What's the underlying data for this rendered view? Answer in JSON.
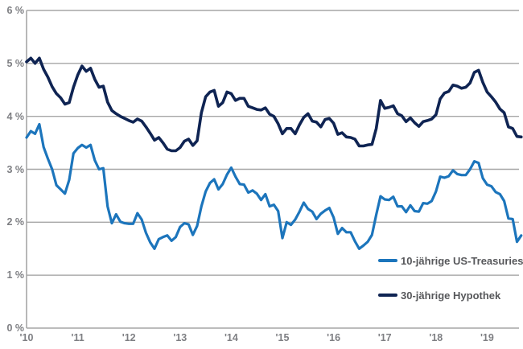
{
  "colors": {
    "background": "#ffffff",
    "grid": "#a6a6a6",
    "axis": "#a6a6a6",
    "tick_text": "#7e7f83",
    "legend_text": "#57585b",
    "series_treasury": "#1c75bc",
    "series_mortgage": "#0f2453"
  },
  "chart_data": {
    "type": "line",
    "title": "",
    "xlabel": "",
    "ylabel": "",
    "x_range": [
      "2010-01",
      "2019-09"
    ],
    "sampling": "monthly",
    "ylim": [
      0,
      6
    ],
    "y_grid_step": 1,
    "grid": "horizontal-only",
    "legend_position": "inside-bottom-right",
    "y_tick_labels": [
      "0 %",
      "1 %",
      "2 %",
      "3 %",
      "4 %",
      "5 %",
      "6 %"
    ],
    "x_tick_labels": [
      "'10",
      "'11",
      "'12",
      "'13",
      "'14",
      "'15",
      "'16",
      "'17",
      "'18",
      "'19"
    ],
    "series": [
      {
        "name": "10-jährige US-Treasuries",
        "color": "#1c75bc",
        "values": [
          3.6,
          3.72,
          3.67,
          3.85,
          3.42,
          3.2,
          3.0,
          2.7,
          2.62,
          2.54,
          2.8,
          3.3,
          3.4,
          3.46,
          3.41,
          3.46,
          3.17,
          3.0,
          3.02,
          2.3,
          1.98,
          2.15,
          2.01,
          1.98,
          1.97,
          1.97,
          2.17,
          2.05,
          1.8,
          1.62,
          1.5,
          1.68,
          1.72,
          1.75,
          1.65,
          1.72,
          1.91,
          1.98,
          1.96,
          1.76,
          1.93,
          2.3,
          2.58,
          2.74,
          2.81,
          2.62,
          2.72,
          2.9,
          3.03,
          2.86,
          2.72,
          2.71,
          2.56,
          2.6,
          2.54,
          2.42,
          2.53,
          2.3,
          2.33,
          2.21,
          1.7,
          2.0,
          1.95,
          2.05,
          2.2,
          2.37,
          2.25,
          2.2,
          2.06,
          2.16,
          2.22,
          2.27,
          2.09,
          1.78,
          1.89,
          1.81,
          1.81,
          1.64,
          1.5,
          1.56,
          1.63,
          1.76,
          2.14,
          2.49,
          2.43,
          2.42,
          2.48,
          2.3,
          2.3,
          2.19,
          2.32,
          2.21,
          2.2,
          2.36,
          2.35,
          2.4,
          2.58,
          2.86,
          2.84,
          2.87,
          2.98,
          2.91,
          2.89,
          2.89,
          3.0,
          3.15,
          3.12,
          2.83,
          2.71,
          2.68,
          2.57,
          2.53,
          2.4,
          2.07,
          2.06,
          1.63,
          1.75
        ]
      },
      {
        "name": "30-jährige Hypothek",
        "color": "#0f2453",
        "values": [
          5.03,
          5.1,
          5.0,
          5.1,
          4.89,
          4.74,
          4.56,
          4.43,
          4.35,
          4.23,
          4.26,
          4.55,
          4.78,
          4.95,
          4.85,
          4.91,
          4.7,
          4.55,
          4.57,
          4.27,
          4.11,
          4.05,
          4.0,
          3.96,
          3.92,
          3.89,
          3.95,
          3.91,
          3.8,
          3.68,
          3.55,
          3.6,
          3.5,
          3.38,
          3.35,
          3.35,
          3.41,
          3.53,
          3.57,
          3.45,
          3.54,
          4.07,
          4.37,
          4.46,
          4.49,
          4.19,
          4.26,
          4.46,
          4.43,
          4.3,
          4.34,
          4.34,
          4.19,
          4.16,
          4.13,
          4.12,
          4.16,
          4.04,
          4.0,
          3.86,
          3.67,
          3.77,
          3.77,
          3.67,
          3.84,
          3.98,
          4.05,
          3.91,
          3.89,
          3.8,
          3.94,
          3.96,
          3.87,
          3.66,
          3.69,
          3.61,
          3.6,
          3.57,
          3.44,
          3.44,
          3.46,
          3.47,
          3.77,
          4.3,
          4.15,
          4.17,
          4.2,
          4.05,
          4.01,
          3.9,
          3.97,
          3.88,
          3.81,
          3.9,
          3.92,
          3.95,
          4.03,
          4.33,
          4.44,
          4.47,
          4.59,
          4.57,
          4.53,
          4.55,
          4.63,
          4.83,
          4.87,
          4.64,
          4.46,
          4.37,
          4.27,
          4.14,
          4.07,
          3.8,
          3.77,
          3.62,
          3.61
        ]
      }
    ]
  },
  "legend": {
    "entries": [
      {
        "label": "10-jährige US-Treasuries"
      },
      {
        "label": "30-jährige Hypothek"
      }
    ]
  }
}
